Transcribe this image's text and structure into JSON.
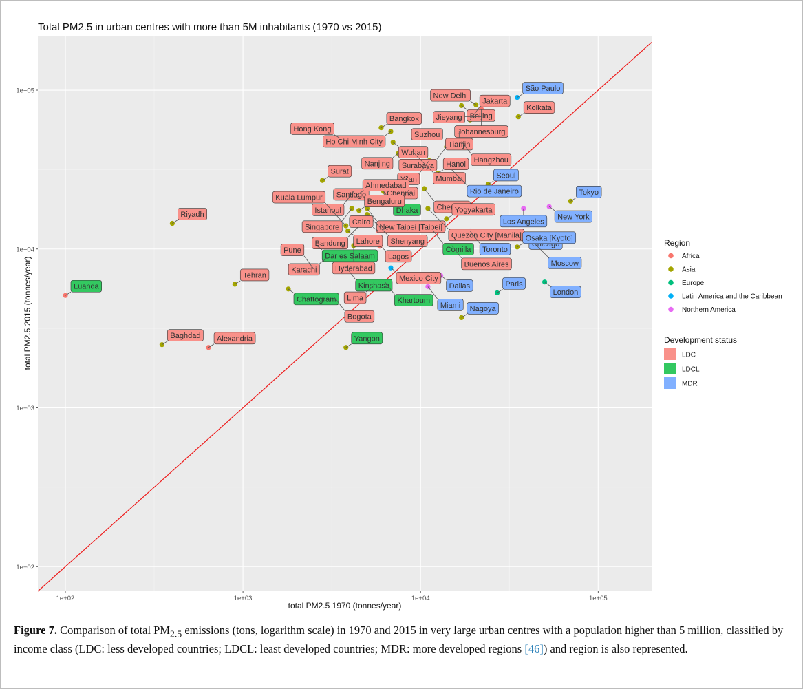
{
  "figure": {
    "caption_label": "Figure 7.",
    "caption_part1": "Comparison of total PM",
    "caption_sub": "2.5",
    "caption_part2": " emissions (tons, logarithm scale) in 1970 and 2015 in very large urban centres with a population higher than 5 million, classified by income class (LDC: less developed countries; LDCL: least developed countries; MDR: more developed regions ",
    "caption_ref_open": "[",
    "caption_ref": "46",
    "caption_ref_close": "]",
    "caption_part3": ") and region is also represented."
  },
  "chart_data": {
    "type": "scatter",
    "title": "Total PM2.5 in urban centres with more than 5M inhabitants (1970 vs 2015)",
    "xlabel": "total PM2.5 1970 (tonnes/year)",
    "ylabel": "total PM2.5 2015 (tonnes/year)",
    "x_scale": "log10",
    "y_scale": "log10",
    "xlim": [
      70,
      200000
    ],
    "ylim": [
      70,
      220000
    ],
    "x_ticks": [
      100,
      1000,
      10000,
      100000
    ],
    "y_ticks": [
      100,
      1000,
      10000,
      100000
    ],
    "x_tick_labels": [
      "1e+02",
      "1e+03",
      "1e+04",
      "1e+05"
    ],
    "y_tick_labels": [
      "1e+02",
      "1e+03",
      "1e+04",
      "1e+05"
    ],
    "reference_line": "y = x",
    "reference_line_color": "#ee1c1c",
    "grid": true,
    "panel_background": "#ebebeb",
    "legend_position": "right",
    "legend_region": {
      "title": "Region",
      "items": [
        {
          "name": "Africa",
          "color": "#f8766d"
        },
        {
          "name": "Asia",
          "color": "#a3a500"
        },
        {
          "name": "Europe",
          "color": "#00bf7d"
        },
        {
          "name": "Latin America and the Caribbean",
          "color": "#00b0f6"
        },
        {
          "name": "Northern America",
          "color": "#e76bf3"
        }
      ]
    },
    "legend_status": {
      "title": "Development status",
      "items": [
        {
          "name": "LDC",
          "color": "#f8766d"
        },
        {
          "name": "LDCL",
          "color": "#00ba38"
        },
        {
          "name": "MDR",
          "color": "#619cff"
        }
      ]
    },
    "points": [
      {
        "city": "São Paulo",
        "x": 35000,
        "y": 90000,
        "region": "Latin America and the Caribbean",
        "status": "MDR"
      },
      {
        "city": "New Delhi",
        "x": 20500,
        "y": 81000,
        "region": "Asia",
        "status": "LDC"
      },
      {
        "city": "Beijing",
        "x": 17000,
        "y": 80000,
        "region": "Asia",
        "status": "LDC"
      },
      {
        "city": "Johannesburg",
        "x": 22000,
        "y": 76000,
        "region": "Africa",
        "status": "LDC"
      },
      {
        "city": "Kolkata",
        "x": 35500,
        "y": 68000,
        "region": "Asia",
        "status": "LDC"
      },
      {
        "city": "Jieyang",
        "x": 22000,
        "y": 68000,
        "region": "Asia",
        "status": "LDC"
      },
      {
        "city": "Jakarta",
        "x": 19000,
        "y": 65000,
        "region": "Asia",
        "status": "LDC"
      },
      {
        "city": "Bangkok",
        "x": 6000,
        "y": 58000,
        "region": "Asia",
        "status": "LDC"
      },
      {
        "city": "Ho Chi Minh City",
        "x": 6800,
        "y": 55000,
        "region": "Asia",
        "status": "LDC"
      },
      {
        "city": "Tianjin",
        "x": 16500,
        "y": 55000,
        "region": "Asia",
        "status": "LDC"
      },
      {
        "city": "Wuhan",
        "x": 7000,
        "y": 47000,
        "region": "Asia",
        "status": "LDC"
      },
      {
        "city": "Suzhou",
        "x": 16500,
        "y": 53000,
        "region": "Asia",
        "status": "LDC"
      },
      {
        "city": "Hong Kong",
        "x": 3500,
        "y": 50000,
        "region": "Asia",
        "status": "LDC"
      },
      {
        "city": "Hangzhou",
        "x": 17000,
        "y": 47500,
        "region": "Asia",
        "status": "LDC"
      },
      {
        "city": "Mumbai",
        "x": 9000,
        "y": 41000,
        "region": "Asia",
        "status": "LDC"
      },
      {
        "city": "Surabaya",
        "x": 14000,
        "y": 44000,
        "region": "Asia",
        "status": "LDC"
      },
      {
        "city": "Nanjing",
        "x": 7500,
        "y": 40000,
        "region": "Asia",
        "status": "LDC"
      },
      {
        "city": "Chennai",
        "x": 5800,
        "y": 26000,
        "region": "Asia",
        "status": "LDC"
      },
      {
        "city": "Rio de Janeiro",
        "x": 14000,
        "y": 34000,
        "region": "Latin America and the Caribbean",
        "status": "MDR"
      },
      {
        "city": "Xi'an",
        "x": 11200,
        "y": 36000,
        "region": "Asia",
        "status": "LDC"
      },
      {
        "city": "Dhaka",
        "x": 6200,
        "y": 23000,
        "region": "Asia",
        "status": "LDCL"
      },
      {
        "city": "Hanoi",
        "x": 12500,
        "y": 30000,
        "region": "Asia",
        "status": "LDC"
      },
      {
        "city": "Seoul",
        "x": 24000,
        "y": 25500,
        "region": "Asia",
        "status": "MDR"
      },
      {
        "city": "Chengdu",
        "x": 10500,
        "y": 24000,
        "region": "Asia",
        "status": "LDC"
      },
      {
        "city": "Surat",
        "x": 2800,
        "y": 27000,
        "region": "Asia",
        "status": "LDC"
      },
      {
        "city": "Santiago",
        "x": 5500,
        "y": 25500,
        "region": "Latin America and the Caribbean",
        "status": "LDC"
      },
      {
        "city": "Istanbul",
        "x": 4200,
        "y": 23000,
        "region": "Asia",
        "status": "LDC"
      },
      {
        "city": "Ahmedabad",
        "x": 4400,
        "y": 22000,
        "region": "Asia",
        "status": "LDC"
      },
      {
        "city": "Los Angeles",
        "x": 38000,
        "y": 18000,
        "region": "Northern America",
        "status": "MDR"
      },
      {
        "city": "Tokyo",
        "x": 70000,
        "y": 20000,
        "region": "Asia",
        "status": "MDR"
      },
      {
        "city": "New York",
        "x": 53000,
        "y": 18500,
        "region": "Northern America",
        "status": "MDR"
      },
      {
        "city": "New Taipei [Taipei]",
        "x": 5000,
        "y": 18000,
        "region": "Asia",
        "status": "LDC"
      },
      {
        "city": "Quezon City [Manila]",
        "x": 11000,
        "y": 18000,
        "region": "Asia",
        "status": "LDC"
      },
      {
        "city": "Singapore",
        "x": 4100,
        "y": 18000,
        "region": "Asia",
        "status": "LDC"
      },
      {
        "city": "Bengaluru",
        "x": 4500,
        "y": 17500,
        "region": "Asia",
        "status": "LDC"
      },
      {
        "city": "Shenyang",
        "x": 5000,
        "y": 16500,
        "region": "Asia",
        "status": "LDC"
      },
      {
        "city": "Bandung",
        "x": 5100,
        "y": 16000,
        "region": "Asia",
        "status": "LDC"
      },
      {
        "city": "Yogyakarta",
        "x": 14000,
        "y": 15500,
        "region": "Asia",
        "status": "LDC"
      },
      {
        "city": "Riyadh",
        "x": 400,
        "y": 14500,
        "region": "Asia",
        "status": "LDC"
      },
      {
        "city": "Chicago",
        "x": 38000,
        "y": 12500,
        "region": "Northern America",
        "status": "MDR"
      },
      {
        "city": "Kuala Lumpur",
        "x": 3800,
        "y": 14000,
        "region": "Asia",
        "status": "LDC"
      },
      {
        "city": "Lahore",
        "x": 3900,
        "y": 13000,
        "region": "Asia",
        "status": "LDC"
      },
      {
        "city": "Cairo",
        "x": 5800,
        "y": 13000,
        "region": "Africa",
        "status": "LDC"
      },
      {
        "city": "Comilla",
        "x": 11800,
        "y": 13000,
        "region": "Asia",
        "status": "LDCL"
      },
      {
        "city": "Toronto",
        "x": 19000,
        "y": 13000,
        "region": "Northern America",
        "status": "MDR"
      },
      {
        "city": "Moscow",
        "x": 40000,
        "y": 12000,
        "region": "Europe",
        "status": "MDR"
      },
      {
        "city": "Dar es Salaam",
        "x": 2600,
        "y": 10500,
        "region": "Africa",
        "status": "LDCL"
      },
      {
        "city": "Lagos",
        "x": 5900,
        "y": 10400,
        "region": "Africa",
        "status": "LDC"
      },
      {
        "city": "Buenos Aires",
        "x": 15000,
        "y": 10500,
        "region": "Latin America and the Caribbean",
        "status": "LDC"
      },
      {
        "city": "Hyderabad",
        "x": 4200,
        "y": 10500,
        "region": "Asia",
        "status": "LDC"
      },
      {
        "city": "Osaka [Kyoto]",
        "x": 35000,
        "y": 10300,
        "region": "Asia",
        "status": "MDR"
      },
      {
        "city": "Karachi",
        "x": 2900,
        "y": 8600,
        "region": "Asia",
        "status": "LDC"
      },
      {
        "city": "Mexico City",
        "x": 6800,
        "y": 7600,
        "region": "Latin America and the Caribbean",
        "status": "LDC"
      },
      {
        "city": "Kinshasa",
        "x": 3800,
        "y": 7700,
        "region": "Africa",
        "status": "LDCL"
      },
      {
        "city": "Pune",
        "x": 2500,
        "y": 7500,
        "region": "Asia",
        "status": "LDC"
      },
      {
        "city": "Tehran",
        "x": 900,
        "y": 6000,
        "region": "Asia",
        "status": "LDC"
      },
      {
        "city": "Khartoum",
        "x": 6300,
        "y": 6200,
        "region": "Africa",
        "status": "LDCL"
      },
      {
        "city": "Dallas",
        "x": 13000,
        "y": 6800,
        "region": "Northern America",
        "status": "MDR"
      },
      {
        "city": "London",
        "x": 50000,
        "y": 6200,
        "region": "Europe",
        "status": "MDR"
      },
      {
        "city": "Luanda",
        "x": 100,
        "y": 5100,
        "region": "Africa",
        "status": "LDCL"
      },
      {
        "city": "Chattogram",
        "x": 1800,
        "y": 5600,
        "region": "Asia",
        "status": "LDCL"
      },
      {
        "city": "Miami",
        "x": 11000,
        "y": 5800,
        "region": "Northern America",
        "status": "MDR"
      },
      {
        "city": "Lima",
        "x": 5300,
        "y": 5700,
        "region": "Latin America and the Caribbean",
        "status": "LDC"
      },
      {
        "city": "Bogota",
        "x": 3300,
        "y": 4900,
        "region": "Latin America and the Caribbean",
        "status": "LDC"
      },
      {
        "city": "Paris",
        "x": 27000,
        "y": 5300,
        "region": "Europe",
        "status": "MDR"
      },
      {
        "city": "Nagoya",
        "x": 17000,
        "y": 3700,
        "region": "Asia",
        "status": "MDR"
      },
      {
        "city": "Baghdad",
        "x": 350,
        "y": 2500,
        "region": "Asia",
        "status": "LDC"
      },
      {
        "city": "Alexandria",
        "x": 640,
        "y": 2400,
        "region": "Africa",
        "status": "LDC"
      },
      {
        "city": "Yangon",
        "x": 3800,
        "y": 2400,
        "region": "Asia",
        "status": "LDCL"
      }
    ]
  }
}
